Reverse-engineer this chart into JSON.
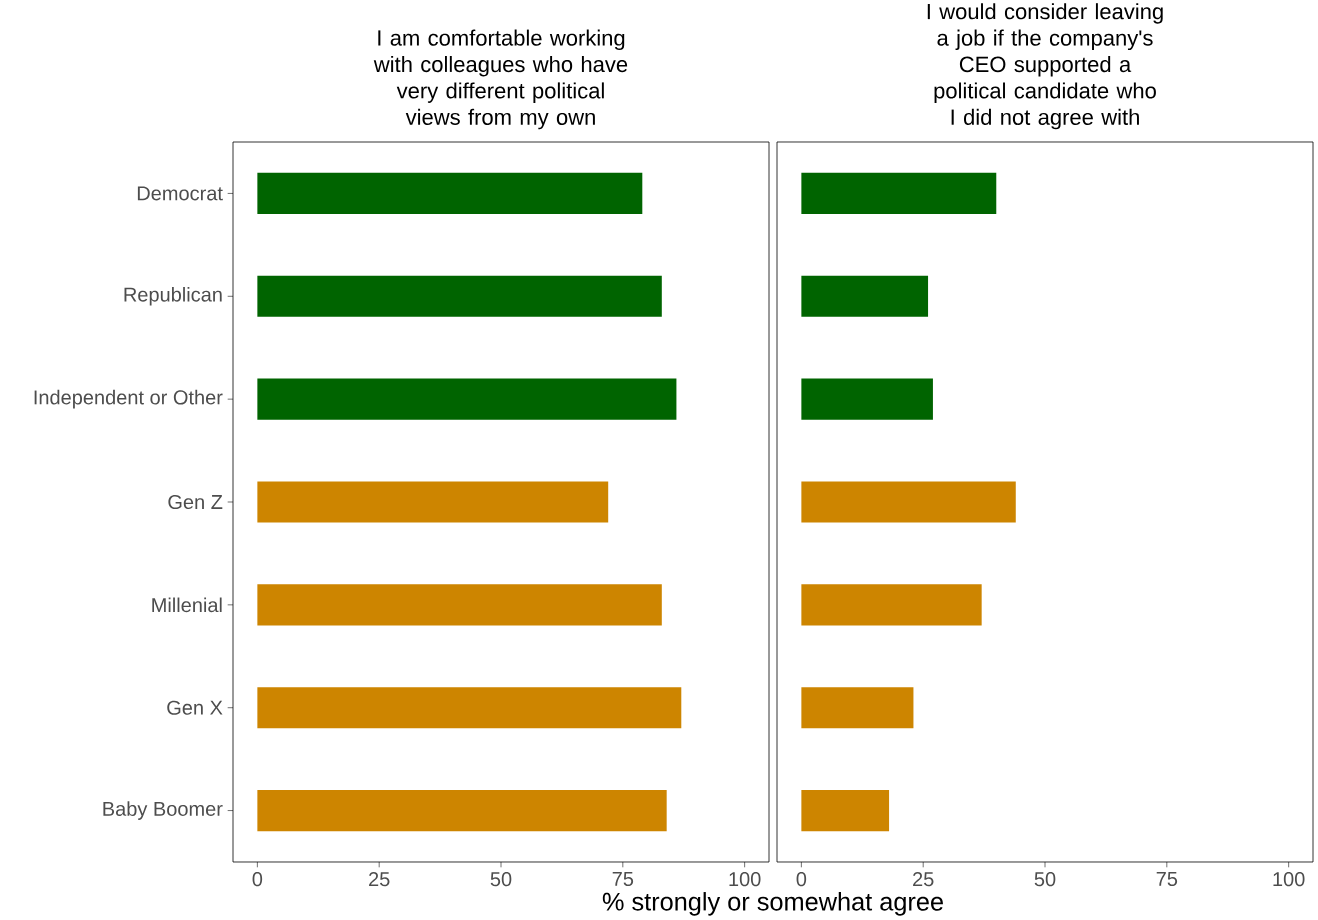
{
  "chart_data": [
    {
      "type": "bar",
      "orientation": "horizontal",
      "title": "I am comfortable working with colleagues who have very different political views from my own",
      "xlabel": "% strongly or somewhat agree",
      "categories": [
        "Democrat",
        "Republican",
        "Independent or Other",
        "Gen Z",
        "Millenial",
        "Gen X",
        "Baby Boomer"
      ],
      "values": [
        79,
        83,
        86,
        72,
        83,
        87,
        84
      ],
      "colors": [
        "#006400",
        "#006400",
        "#006400",
        "#cd8500",
        "#cd8500",
        "#cd8500",
        "#cd8500"
      ],
      "xlim": [
        -5,
        105
      ],
      "xticks": [
        0,
        25,
        50,
        75,
        100
      ],
      "grid": false
    },
    {
      "type": "bar",
      "orientation": "horizontal",
      "title": "I would consider leaving a job if the company's CEO supported a political candidate who I did not agree with",
      "categories": [
        null,
        null,
        null,
        null,
        null,
        null,
        null
      ],
      "values": [
        40,
        26,
        27,
        44,
        37,
        23,
        18
      ],
      "colors": [
        "#006400",
        "#006400",
        "#006400",
        "#cd8500",
        "#cd8500",
        "#cd8500",
        "#cd8500"
      ],
      "xlim": [
        -5,
        105
      ],
      "xticks": [
        0,
        25,
        50,
        75,
        100
      ],
      "grid": false,
      "tick_labels": "x"
    }
  ]
}
